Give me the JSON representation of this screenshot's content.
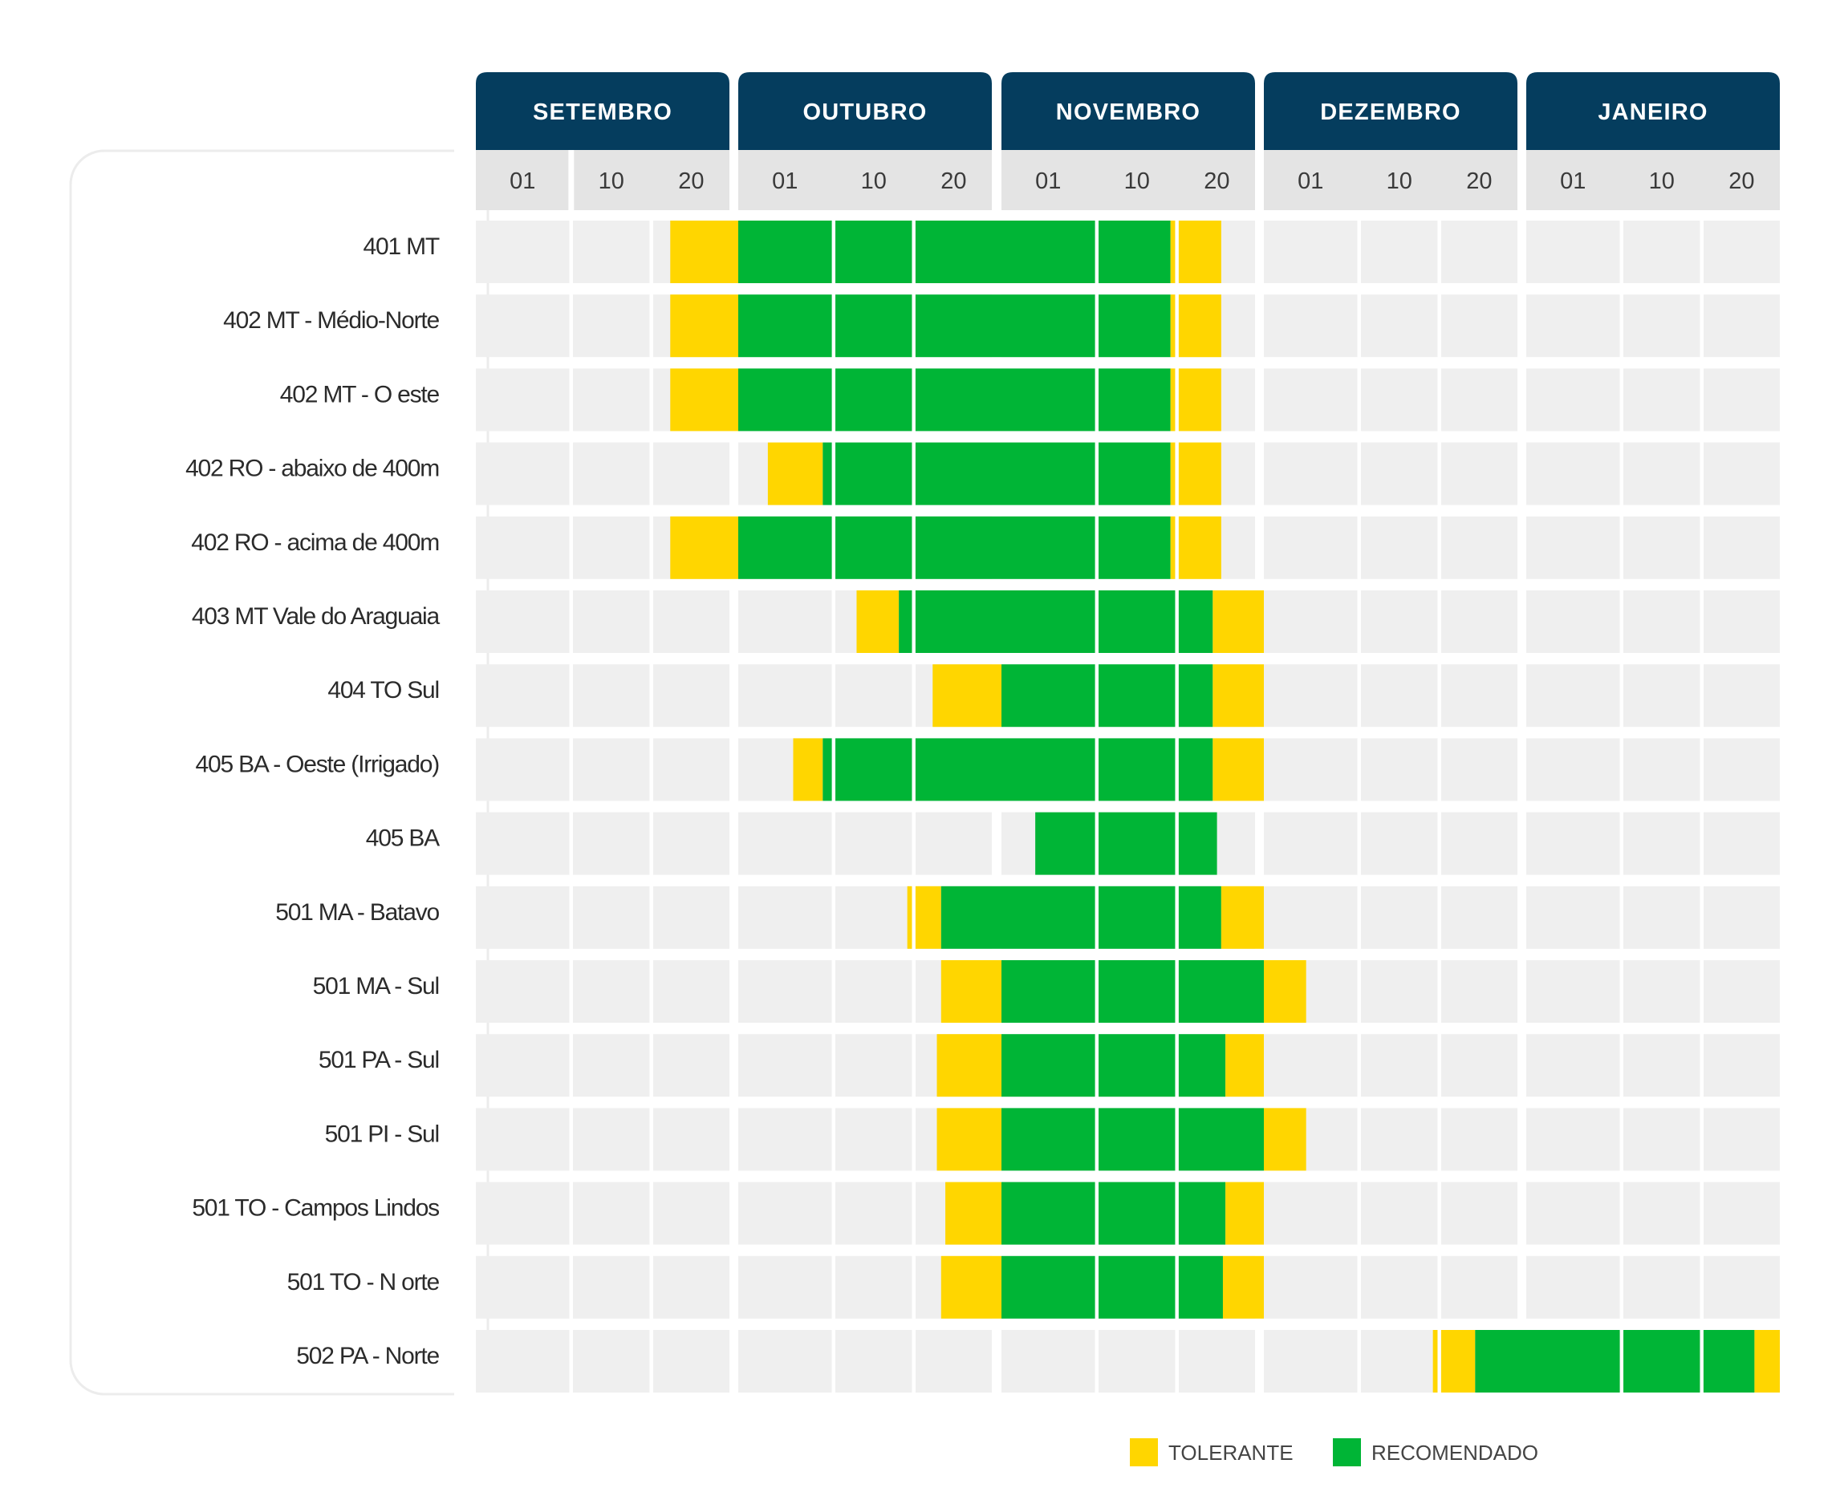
{
  "chart_data": {
    "type": "gantt",
    "colors": {
      "header": "#053D5E",
      "day_header_bg": "#E4E4E4",
      "cell_bg": "#EFEFEF",
      "tolerant": "#FFD600",
      "recommended": "#00B536"
    },
    "months": [
      {
        "name": "SETEMBRO",
        "days": [
          "01",
          "10",
          "20"
        ]
      },
      {
        "name": "OUTUBRO",
        "days": [
          "01",
          "10",
          "20"
        ]
      },
      {
        "name": "NOVEMBRO",
        "days": [
          "01",
          "10",
          "20"
        ]
      },
      {
        "name": "DEZEMBRO",
        "days": [
          "01",
          "10",
          "20"
        ]
      },
      {
        "name": "JANEIRO",
        "days": [
          "01",
          "10",
          "20"
        ]
      }
    ],
    "rows": [
      {
        "label": "401 MT",
        "segments": [
          {
            "kind": "tolerant",
            "start": 2.3,
            "end": 3.0
          },
          {
            "kind": "recommended",
            "start": 3.0,
            "end": 8.0
          },
          {
            "kind": "tolerant",
            "start": 8.0,
            "end": 8.6
          }
        ]
      },
      {
        "label": "402 MT - Médio-Norte",
        "segments": [
          {
            "kind": "tolerant",
            "start": 2.3,
            "end": 3.0
          },
          {
            "kind": "recommended",
            "start": 3.0,
            "end": 8.0
          },
          {
            "kind": "tolerant",
            "start": 8.0,
            "end": 8.6
          }
        ]
      },
      {
        "label": "402 MT - O este",
        "segments": [
          {
            "kind": "tolerant",
            "start": 2.3,
            "end": 3.0
          },
          {
            "kind": "recommended",
            "start": 3.0,
            "end": 8.0
          },
          {
            "kind": "tolerant",
            "start": 8.0,
            "end": 8.6
          }
        ]
      },
      {
        "label": "402 RO - abaixo de 400m",
        "segments": [
          {
            "kind": "tolerant",
            "start": 3.35,
            "end": 4.0
          },
          {
            "kind": "recommended",
            "start": 4.0,
            "end": 8.0
          },
          {
            "kind": "tolerant",
            "start": 8.0,
            "end": 8.6
          }
        ]
      },
      {
        "label": "402 RO - acima de 400m",
        "segments": [
          {
            "kind": "tolerant",
            "start": 2.3,
            "end": 3.0
          },
          {
            "kind": "recommended",
            "start": 3.0,
            "end": 8.0
          },
          {
            "kind": "tolerant",
            "start": 8.0,
            "end": 8.6
          }
        ]
      },
      {
        "label": "403 MT Vale do Araguaia",
        "segments": [
          {
            "kind": "tolerant",
            "start": 4.4,
            "end": 4.9
          },
          {
            "kind": "recommended",
            "start": 4.9,
            "end": 8.5
          },
          {
            "kind": "tolerant",
            "start": 8.5,
            "end": 9.0
          }
        ]
      },
      {
        "label": "404 TO Sul",
        "segments": [
          {
            "kind": "tolerant",
            "start": 5.3,
            "end": 6.0
          },
          {
            "kind": "recommended",
            "start": 6.0,
            "end": 8.5
          },
          {
            "kind": "tolerant",
            "start": 8.5,
            "end": 9.0
          }
        ]
      },
      {
        "label": "405 BA - Oeste (Irrigado)",
        "segments": [
          {
            "kind": "tolerant",
            "start": 3.65,
            "end": 4.0
          },
          {
            "kind": "recommended",
            "start": 4.0,
            "end": 8.5
          },
          {
            "kind": "tolerant",
            "start": 8.5,
            "end": 9.0
          }
        ]
      },
      {
        "label": "405 BA",
        "segments": [
          {
            "kind": "recommended",
            "start": 6.4,
            "end": 8.55
          }
        ]
      },
      {
        "label": "501 MA - Batavo",
        "segments": [
          {
            "kind": "tolerant",
            "start": 5.0,
            "end": 5.4
          },
          {
            "kind": "recommended",
            "start": 5.4,
            "end": 8.6
          },
          {
            "kind": "tolerant",
            "start": 8.6,
            "end": 9.0
          }
        ]
      },
      {
        "label": "501 MA - Sul",
        "segments": [
          {
            "kind": "tolerant",
            "start": 5.4,
            "end": 6.0
          },
          {
            "kind": "recommended",
            "start": 6.0,
            "end": 9.0
          },
          {
            "kind": "tolerant",
            "start": 9.0,
            "end": 9.5
          }
        ]
      },
      {
        "label": "501 PA - Sul",
        "segments": [
          {
            "kind": "tolerant",
            "start": 5.35,
            "end": 6.0
          },
          {
            "kind": "recommended",
            "start": 6.0,
            "end": 8.65
          },
          {
            "kind": "tolerant",
            "start": 8.65,
            "end": 9.0
          }
        ]
      },
      {
        "label": "501 PI - Sul",
        "segments": [
          {
            "kind": "tolerant",
            "start": 5.35,
            "end": 6.0
          },
          {
            "kind": "recommended",
            "start": 6.0,
            "end": 9.0
          },
          {
            "kind": "tolerant",
            "start": 9.0,
            "end": 9.5
          }
        ]
      },
      {
        "label": "501 TO - Campos Lindos",
        "segments": [
          {
            "kind": "tolerant",
            "start": 5.45,
            "end": 6.0
          },
          {
            "kind": "recommended",
            "start": 6.0,
            "end": 8.65
          },
          {
            "kind": "tolerant",
            "start": 8.65,
            "end": 9.0
          }
        ]
      },
      {
        "label": "501 TO - N orte",
        "segments": [
          {
            "kind": "tolerant",
            "start": 5.4,
            "end": 6.0
          },
          {
            "kind": "recommended",
            "start": 6.0,
            "end": 8.62
          },
          {
            "kind": "tolerant",
            "start": 8.62,
            "end": 9.0
          }
        ]
      },
      {
        "label": "502 PA - Norte",
        "segments": [
          {
            "kind": "tolerant",
            "start": 11.0,
            "end": 11.5
          },
          {
            "kind": "recommended",
            "start": 11.5,
            "end": 14.7
          },
          {
            "kind": "tolerant",
            "start": 14.7,
            "end": 15.0
          }
        ]
      }
    ],
    "legend": [
      {
        "kind": "tolerant",
        "label": "TOLERANTE"
      },
      {
        "kind": "recommended",
        "label": "RECOMENDADO"
      }
    ],
    "legend_position": "bottom-center"
  }
}
